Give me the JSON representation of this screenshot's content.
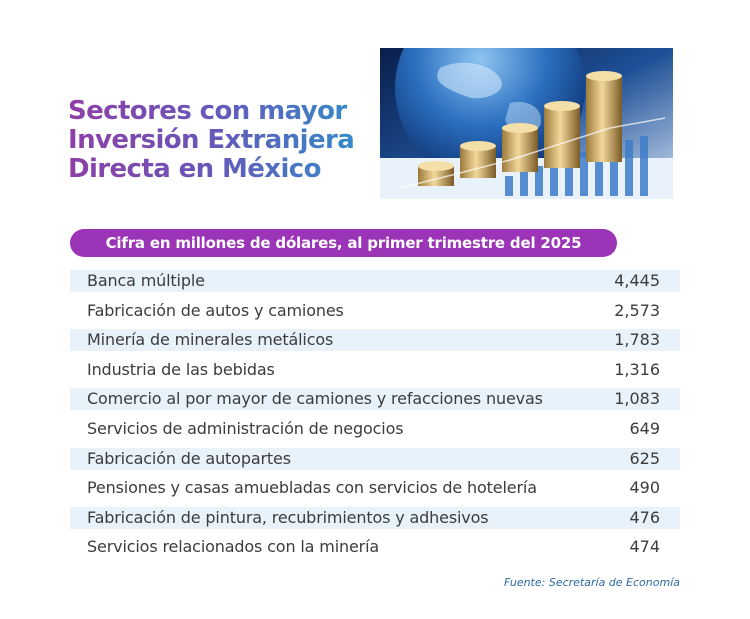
{
  "title_lines": [
    "Sectores con mayor",
    "Inversión Extranjera",
    "Directa en México"
  ],
  "hero_image": "globe-and-coin-stacks-on-financial-chart",
  "colors": {
    "title_start": "#8e3fa6",
    "title_end": "#2f8fcb",
    "pill": "#9b34b6",
    "row_shade": "#e8f2fb",
    "source": "#2e6aa5"
  },
  "chart_data": {
    "type": "table",
    "subtitle": "Cifra en millones de dólares, al primer trimestre del 2025",
    "rows": [
      {
        "label": "Banca múltiple",
        "value": "4,445"
      },
      {
        "label": "Fabricación de autos y camiones",
        "value": "2,573"
      },
      {
        "label": "Minería de minerales metálicos",
        "value": "1,783"
      },
      {
        "label": "Industria de las bebidas",
        "value": "1,316"
      },
      {
        "label": "Comercio al por mayor de camiones y refacciones nuevas",
        "value": "1,083"
      },
      {
        "label": "Servicios de administración de negocios",
        "value": "649"
      },
      {
        "label": "Fabricación de autopartes",
        "value": "625"
      },
      {
        "label": "Pensiones y casas amuebladas con servicios de hotelería",
        "value": "490"
      },
      {
        "label": "Fabricación de pintura, recubrimientos y adhesivos",
        "value": "476"
      },
      {
        "label": "Servicios relacionados con la minería",
        "value": "474"
      }
    ],
    "source": "Fuente: Secretaría de Economía"
  }
}
